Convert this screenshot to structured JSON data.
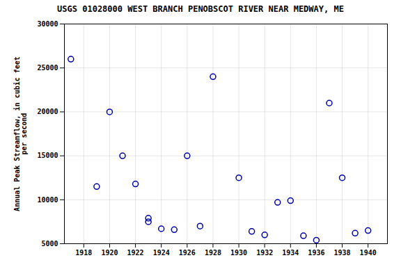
{
  "chart_data": {
    "type": "scatter",
    "title": "USGS 01028000 WEST BRANCH PENOBSCOT RIVER NEAR MEDWAY, ME",
    "ylabel": "Annual Peak Streamflow, in cubic feet\nper second",
    "x": [
      1917,
      1919,
      1920,
      1921,
      1922,
      1923,
      1923,
      1924,
      1925,
      1926,
      1927,
      1928,
      1930,
      1931,
      1932,
      1933,
      1934,
      1935,
      1936,
      1937,
      1938,
      1939,
      1940
    ],
    "values": [
      26000,
      11500,
      20000,
      15000,
      11800,
      7900,
      7500,
      6700,
      6600,
      15000,
      7000,
      24000,
      12500,
      6400,
      6000,
      9700,
      9900,
      5900,
      5400,
      21000,
      12500,
      6200,
      6500
    ],
    "color": "#0000aa",
    "xlim": [
      1916.5,
      1941.5
    ],
    "ylim": [
      5000,
      30000
    ],
    "xticks": [
      1918,
      1920,
      1922,
      1924,
      1926,
      1928,
      1930,
      1932,
      1934,
      1936,
      1938,
      1940
    ],
    "yticks": [
      5000,
      10000,
      15000,
      20000,
      25000,
      30000
    ],
    "grid": true
  }
}
